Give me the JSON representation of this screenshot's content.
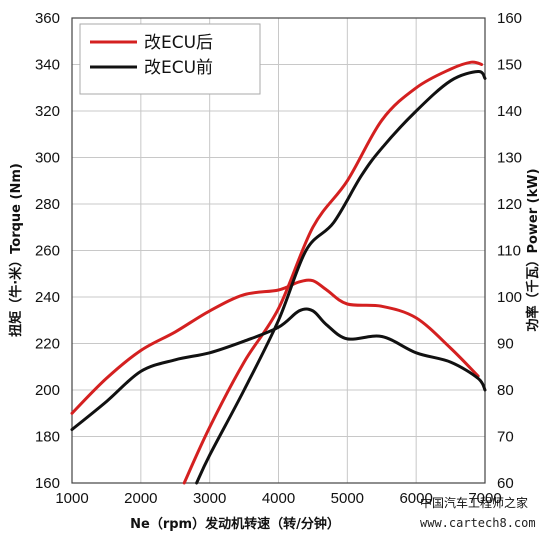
{
  "chart_data": {
    "type": "line",
    "x_label": "Ne（rpm）发动机转速（转/分钟）",
    "y_left_label": "扭矩（牛·米）Torque (Nm)",
    "y_right_label": "功率（千瓦）Power (kW)",
    "x_range": [
      1000,
      7000
    ],
    "x_ticks": [
      "1000",
      "2000",
      "3000",
      "4000",
      "5000",
      "6000",
      "7000"
    ],
    "y_left_range": [
      160,
      360
    ],
    "y_left_ticks": [
      "160",
      "180",
      "200",
      "220",
      "240",
      "260",
      "280",
      "300",
      "320",
      "340",
      "360"
    ],
    "y_right_range": [
      60,
      160
    ],
    "y_right_ticks": [
      "60",
      "70",
      "80",
      "90",
      "100",
      "110",
      "120",
      "130",
      "140",
      "150",
      "160"
    ],
    "grid": true,
    "legend_position": "top-left",
    "series": [
      {
        "name": "改ECU后",
        "color": "#d42020",
        "axis": "torque",
        "x": [
          1000,
          1500,
          2000,
          2500,
          3000,
          3500,
          4000,
          4300,
          4500,
          4700,
          5000,
          5500,
          6000,
          6500,
          6900
        ],
        "y": [
          190,
          205,
          217,
          225,
          234,
          241,
          243,
          246.5,
          247,
          243,
          237,
          236,
          231,
          218,
          206
        ]
      },
      {
        "name": "改ECU后",
        "color": "#d42020",
        "axis": "power",
        "x": [
          2630,
          3000,
          3500,
          4000,
          4500,
          5000,
          5500,
          6000,
          6500,
          6800,
          6950
        ],
        "y": [
          60,
          72,
          86,
          97.5,
          115,
          125,
          138,
          145,
          149,
          150.5,
          150
        ]
      },
      {
        "name": "改ECU前",
        "color": "#111111",
        "axis": "torque",
        "x": [
          1000,
          1500,
          2000,
          2500,
          3000,
          3500,
          4000,
          4300,
          4500,
          4700,
          5000,
          5500,
          6000,
          6500,
          6900,
          7000
        ],
        "y": [
          183,
          195,
          208,
          213,
          216,
          221,
          227,
          234,
          234,
          228,
          222,
          223,
          216,
          212,
          205,
          200
        ]
      },
      {
        "name": "改ECU前",
        "color": "#111111",
        "axis": "power",
        "x": [
          2810,
          3000,
          3500,
          4000,
          4400,
          4800,
          5200,
          5500,
          6000,
          6500,
          6900,
          7000
        ],
        "y": [
          60,
          66,
          80,
          95,
          110,
          116,
          126,
          132,
          140,
          146.5,
          148.5,
          147
        ]
      }
    ]
  },
  "legend": {
    "items": [
      {
        "label": "改ECU后",
        "color": "#d42020"
      },
      {
        "label": "改ECU前",
        "color": "#111111"
      }
    ]
  },
  "watermark": {
    "text": "中国汽车工程师之家",
    "url": "www.cartech8.com"
  }
}
